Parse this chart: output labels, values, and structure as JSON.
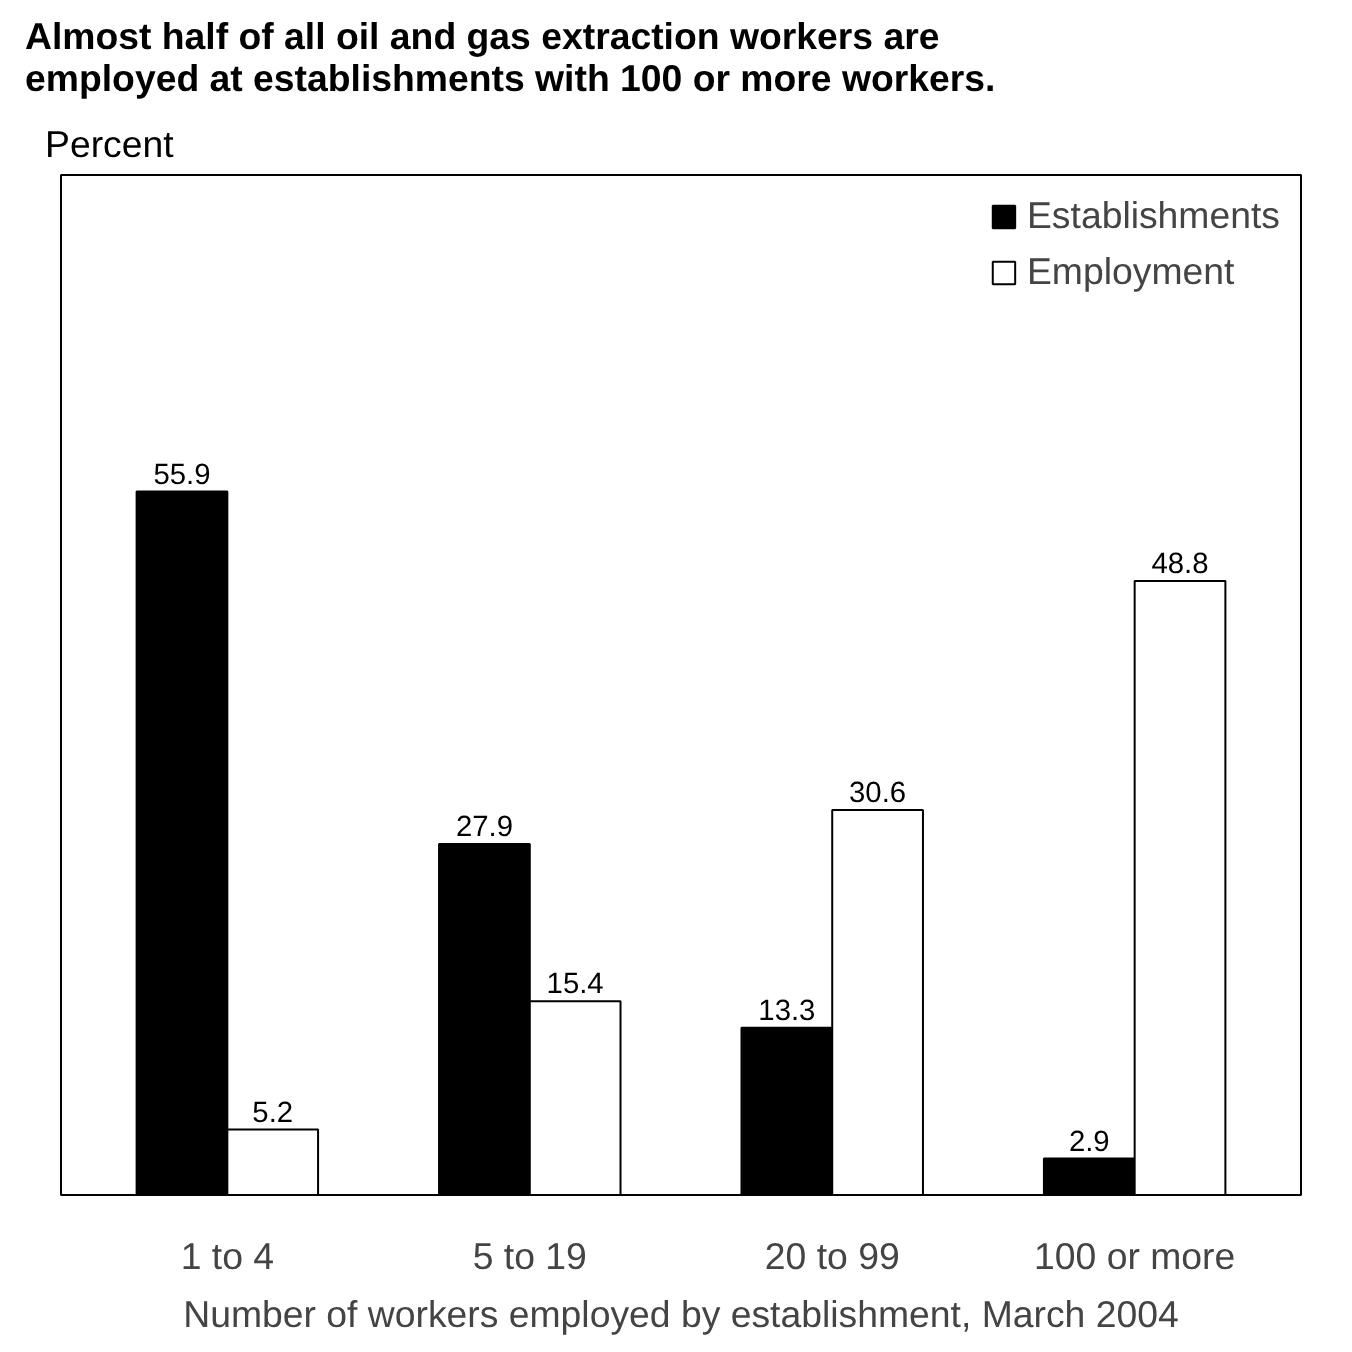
{
  "chart_data": {
    "type": "bar",
    "title": "Almost half of all oil and gas extraction workers are employed at establishments with 100 or more workers.",
    "annotations": [
      "Percent"
    ],
    "xlabel": "Number of workers employed by establishment, March 2004",
    "categories": [
      "1 to 4",
      "5 to 19",
      "20 to 99",
      "100 or more"
    ],
    "series": [
      {
        "name": "Establishments",
        "color": "#000000",
        "values": [
          55.9,
          27.9,
          13.3,
          2.9
        ]
      },
      {
        "name": "Employment",
        "color": "#ffffff",
        "values": [
          5.2,
          15.4,
          30.6,
          48.8
        ]
      }
    ],
    "data_labels": true,
    "legend": "top right",
    "grid": false
  }
}
